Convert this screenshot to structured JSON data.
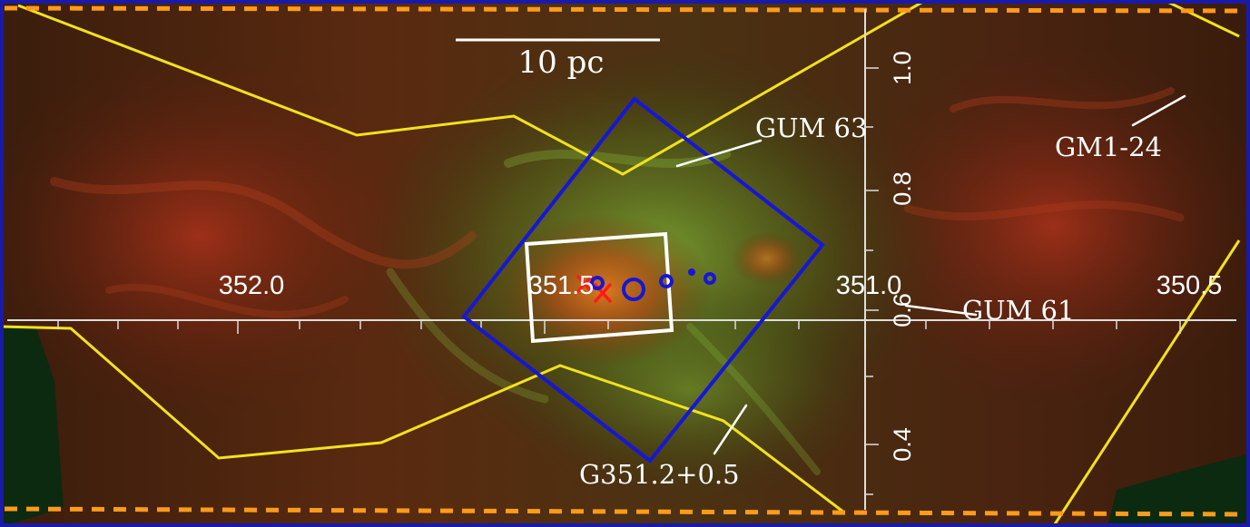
{
  "scale_bar": {
    "label": "10 pc"
  },
  "longitude_ticks": [
    "352.0",
    "351.5",
    "351.0",
    "350.5"
  ],
  "latitude_ticks": [
    "1.0",
    "0.8",
    "0.6",
    "0.4"
  ],
  "annotations": {
    "gum63": "GUM 63",
    "gm124": "GM1-24",
    "gum61": "GUM 61",
    "g351": "G351.2+0.5"
  },
  "colors": {
    "frame": "#1a1aa8",
    "survey_outline": "#f2e21c",
    "coverage_box": "#1616d8",
    "dashed_border": "#ff9b1a",
    "marker_cross": "#ff1a1a",
    "marker_circle": "#1616d8",
    "labels": "#ffffff"
  }
}
